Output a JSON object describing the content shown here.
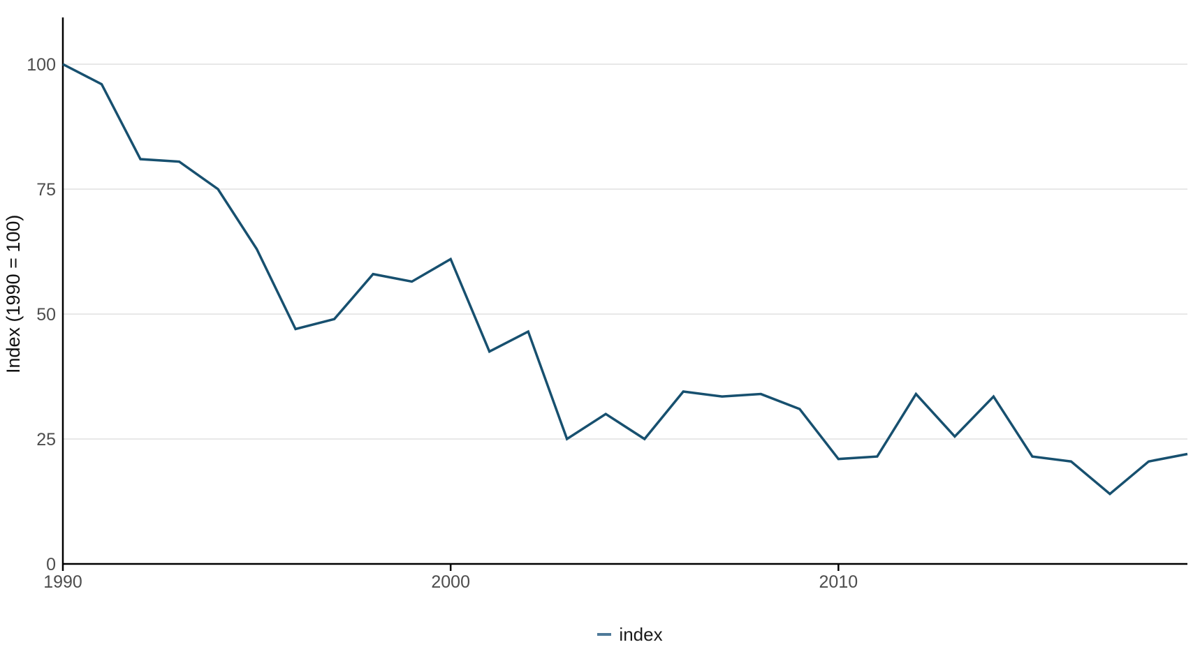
{
  "chart_data": {
    "type": "line",
    "title": "",
    "xlabel": "",
    "ylabel": "Index (1990 = 100)",
    "legend": [
      "index"
    ],
    "legend_position": "bottom-center",
    "grid": "horizontal-only",
    "xlim": [
      1990,
      2019
    ],
    "ylim": [
      0,
      109
    ],
    "x_ticks": [
      1990,
      2000,
      2010
    ],
    "x_tick_labels": [
      "1990",
      "2000",
      "2010"
    ],
    "y_ticks": [
      0,
      25,
      50,
      75,
      100
    ],
    "y_tick_labels": [
      "0",
      "25",
      "50",
      "75",
      "100"
    ],
    "x": [
      1990,
      1991,
      1992,
      1993,
      1994,
      1995,
      1996,
      1997,
      1998,
      1999,
      2000,
      2001,
      2002,
      2003,
      2004,
      2005,
      2006,
      2007,
      2008,
      2009,
      2010,
      2011,
      2012,
      2013,
      2014,
      2015,
      2016,
      2017,
      2018,
      2019
    ],
    "series": [
      {
        "name": "index",
        "values": [
          100,
          96,
          81,
          80.5,
          75,
          63,
          47,
          49,
          58,
          56.5,
          61,
          42.5,
          46.5,
          25,
          30,
          25,
          34.5,
          33.5,
          34,
          31,
          21,
          21.5,
          34,
          25.5,
          33.5,
          21.5,
          20.5,
          14,
          20.5,
          22
        ]
      }
    ],
    "colors": {
      "line": "#17506f",
      "legend_swatch": "#4e7a99",
      "grid": "#e8e8e8",
      "axis": "#000000",
      "tick_label": "#4d4d4d",
      "axis_title": "#111111",
      "background": "#ffffff"
    }
  }
}
